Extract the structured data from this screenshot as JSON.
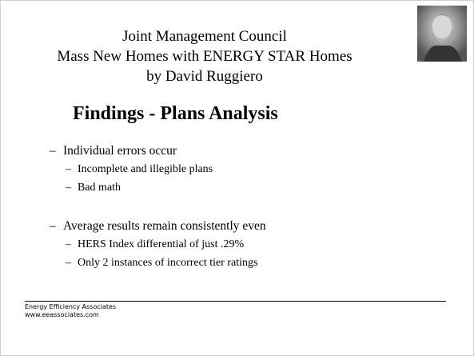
{
  "header": {
    "lines": [
      "Joint Management Council",
      "Mass New Homes with ENERGY STAR Homes",
      "by David Ruggiero"
    ]
  },
  "heading": "Findings - Plans Analysis",
  "bullets": [
    {
      "text": "Individual errors occur",
      "sub": [
        "Incomplete and illegible plans",
        "Bad math"
      ]
    },
    {
      "text": "Average results remain consistently even",
      "sub": [
        "HERS Index differential of just .29%",
        "Only 2 instances of incorrect tier ratings"
      ]
    }
  ],
  "footer": {
    "lines": [
      "Energy Efficiency Associates",
      "www.eeassociates.com"
    ]
  }
}
